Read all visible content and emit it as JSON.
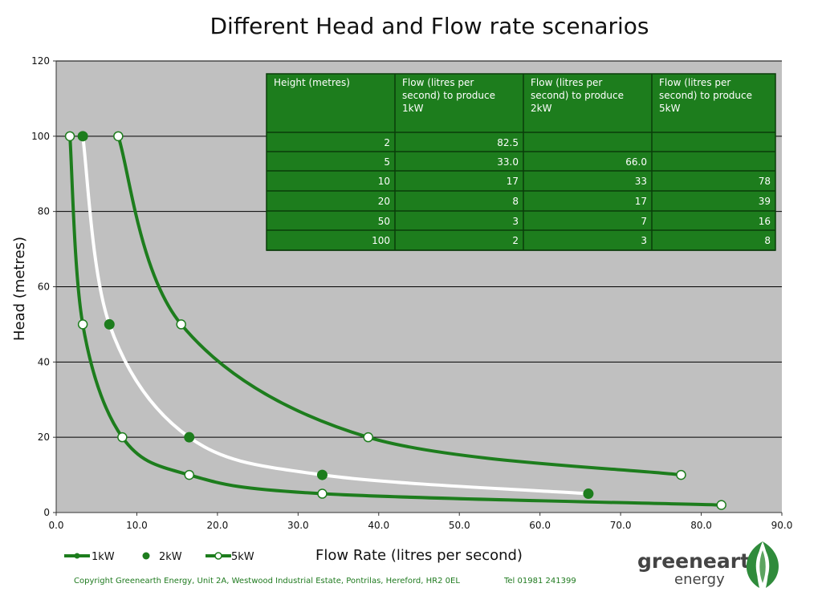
{
  "chart_data": {
    "type": "line",
    "title": "Different Head and Flow rate scenarios",
    "xlabel": "Flow Rate (litres per second)",
    "ylabel": "Head (metres)",
    "xlim": [
      0,
      90
    ],
    "ylim": [
      0,
      120
    ],
    "x_ticks": [
      "0.0",
      "10.0",
      "20.0",
      "30.0",
      "40.0",
      "50.0",
      "60.0",
      "70.0",
      "80.0",
      "90.0"
    ],
    "y_ticks": [
      "0",
      "20",
      "40",
      "60",
      "80",
      "100",
      "120"
    ],
    "grid": "horizontal",
    "background_color": "#c0c0c0",
    "series": [
      {
        "name": "1kW",
        "color": "#1d7d1d",
        "marker": "white-filled circle",
        "points": [
          [
            82.5,
            2
          ],
          [
            33.0,
            5
          ],
          [
            16.5,
            10
          ],
          [
            8.2,
            20
          ],
          [
            3.3,
            50
          ],
          [
            1.7,
            100
          ]
        ]
      },
      {
        "name": "2kW",
        "color": "#1d7d1d",
        "line_color": "#ffffff",
        "marker": "green-filled circle",
        "points": [
          [
            66.0,
            5
          ],
          [
            33.0,
            10
          ],
          [
            16.5,
            20
          ],
          [
            6.6,
            50
          ],
          [
            3.3,
            100
          ]
        ]
      },
      {
        "name": "5kW",
        "color": "#1d7d1d",
        "marker": "white-filled circle",
        "points": [
          [
            77.5,
            10
          ],
          [
            38.7,
            20
          ],
          [
            15.5,
            50
          ],
          [
            7.7,
            100
          ]
        ]
      }
    ],
    "legend_position": "bottom-left"
  },
  "table": {
    "headers": [
      "Height (metres)",
      "Flow (litres per second) to produce 1kW",
      "Flow (litres per second) to produce 2kW",
      "Flow (litres per second) to produce 5kW"
    ],
    "header_lines": [
      [
        "Height (metres)"
      ],
      [
        "Flow (litres per",
        "second) to produce",
        "1kW"
      ],
      [
        "Flow (litres per",
        "second) to produce",
        "2kW"
      ],
      [
        "Flow (litres per",
        "second) to produce",
        "5kW"
      ]
    ],
    "rows": [
      [
        "2",
        "82.5",
        "",
        ""
      ],
      [
        "5",
        "33.0",
        "66.0",
        ""
      ],
      [
        "10",
        "17",
        "33",
        "78"
      ],
      [
        "20",
        "8",
        "17",
        "39"
      ],
      [
        "50",
        "3",
        "7",
        "16"
      ],
      [
        "100",
        "2",
        "3",
        "8"
      ]
    ],
    "fill_color": "#1d7d1d"
  },
  "legend": {
    "items": [
      "1kW",
      "2kW",
      "5kW"
    ]
  },
  "footer": {
    "copyright": "Copyright Greenearth Energy, Unit 2A, Westwood Industrial Estate, Pontrilas, Hereford, HR2 0EL",
    "phone": "Tel 01981 241399"
  },
  "logo": {
    "main": "greenearth",
    "sub": "energy"
  }
}
